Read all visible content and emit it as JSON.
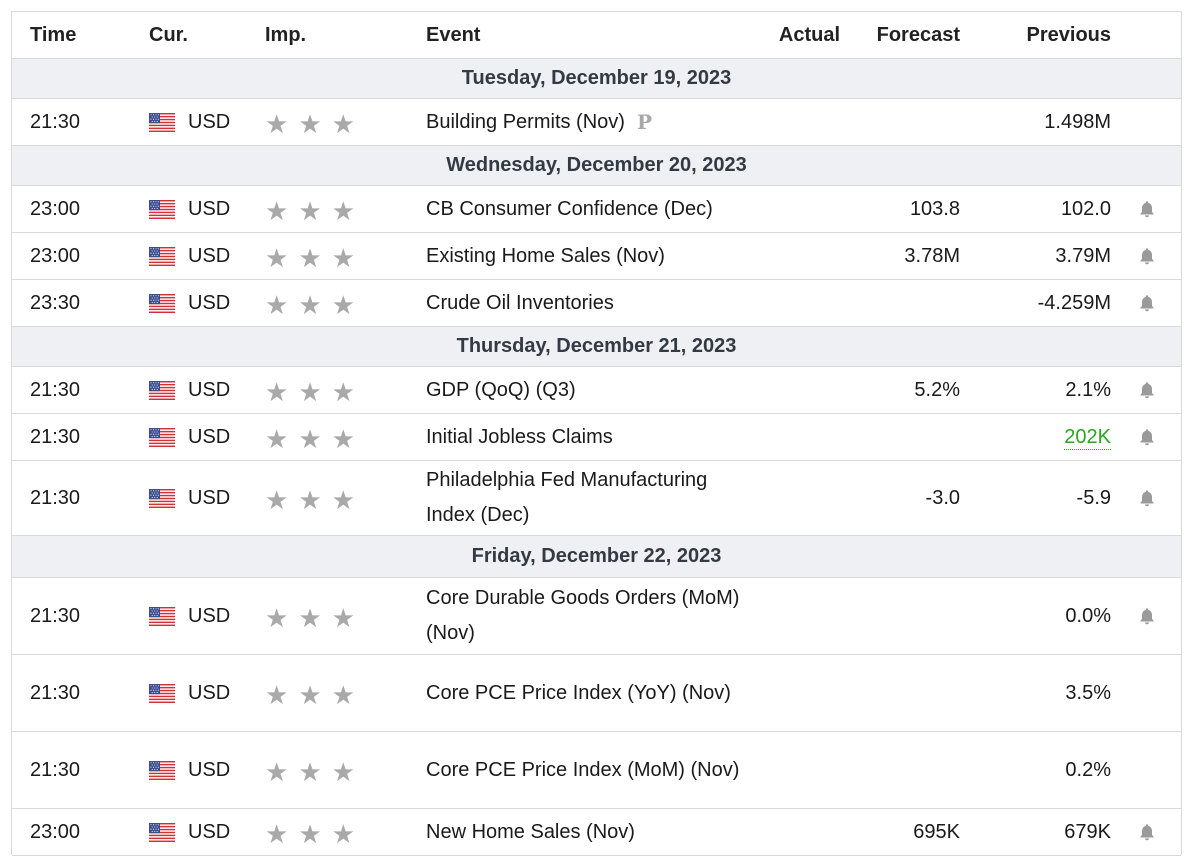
{
  "columns": {
    "time": "Time",
    "currency": "Cur.",
    "importance": "Imp.",
    "event": "Event",
    "actual": "Actual",
    "forecast": "Forecast",
    "previous": "Previous"
  },
  "icons": {
    "flag": "us-flag-icon",
    "star": "star-icon",
    "alert": "bell-icon",
    "preliminary": "preliminary-p-icon"
  },
  "colors": {
    "better_than_expected": "#26a81e",
    "day_header_bg": "#eef0f3",
    "star": "#a9a9a9"
  },
  "days": [
    {
      "label": "Tuesday, December 19, 2023"
    },
    {
      "label": "Wednesday, December 20, 2023"
    },
    {
      "label": "Thursday, December 21, 2023"
    },
    {
      "label": "Friday, December 22, 2023"
    }
  ],
  "events": [
    {
      "time": "21:30",
      "currency": "USD",
      "stars": 3,
      "event": "Building Permits (Nov)",
      "preliminary": "P",
      "actual": "",
      "forecast": "",
      "previous": "1.498M",
      "alert": false
    },
    {
      "time": "23:00",
      "currency": "USD",
      "stars": 3,
      "event": "CB Consumer Confidence (Dec)",
      "actual": "",
      "forecast": "103.8",
      "previous": "102.0",
      "alert": true
    },
    {
      "time": "23:00",
      "currency": "USD",
      "stars": 3,
      "event": "Existing Home Sales (Nov)",
      "actual": "",
      "forecast": "3.78M",
      "previous": "3.79M",
      "alert": true
    },
    {
      "time": "23:30",
      "currency": "USD",
      "stars": 3,
      "event": "Crude Oil Inventories",
      "actual": "",
      "forecast": "",
      "previous": "-4.259M",
      "alert": true
    },
    {
      "time": "21:30",
      "currency": "USD",
      "stars": 3,
      "event": "GDP (QoQ) (Q3)",
      "actual": "",
      "forecast": "5.2%",
      "previous": "2.1%",
      "alert": true
    },
    {
      "time": "21:30",
      "currency": "USD",
      "stars": 3,
      "event": "Initial Jobless Claims",
      "actual": "",
      "forecast": "",
      "previous": "202K",
      "previous_status": "better",
      "alert": true
    },
    {
      "time": "21:30",
      "currency": "USD",
      "stars": 3,
      "event": "Philadelphia Fed Manufacturing Index (Dec)",
      "actual": "",
      "forecast": "-3.0",
      "previous": "-5.9",
      "alert": true
    },
    {
      "time": "21:30",
      "currency": "USD",
      "stars": 3,
      "event": "Core Durable Goods Orders (MoM) (Nov)",
      "actual": "",
      "forecast": "",
      "previous": "0.0%",
      "alert": true
    },
    {
      "time": "21:30",
      "currency": "USD",
      "stars": 3,
      "event": "Core PCE Price Index (YoY) (Nov)",
      "actual": "",
      "forecast": "",
      "previous": "3.5%",
      "alert": false
    },
    {
      "time": "21:30",
      "currency": "USD",
      "stars": 3,
      "event": "Core PCE Price Index (MoM) (Nov)",
      "actual": "",
      "forecast": "",
      "previous": "0.2%",
      "alert": false
    },
    {
      "time": "23:00",
      "currency": "USD",
      "stars": 3,
      "event": "New Home Sales (Nov)",
      "actual": "",
      "forecast": "695K",
      "previous": "679K",
      "alert": true
    }
  ]
}
